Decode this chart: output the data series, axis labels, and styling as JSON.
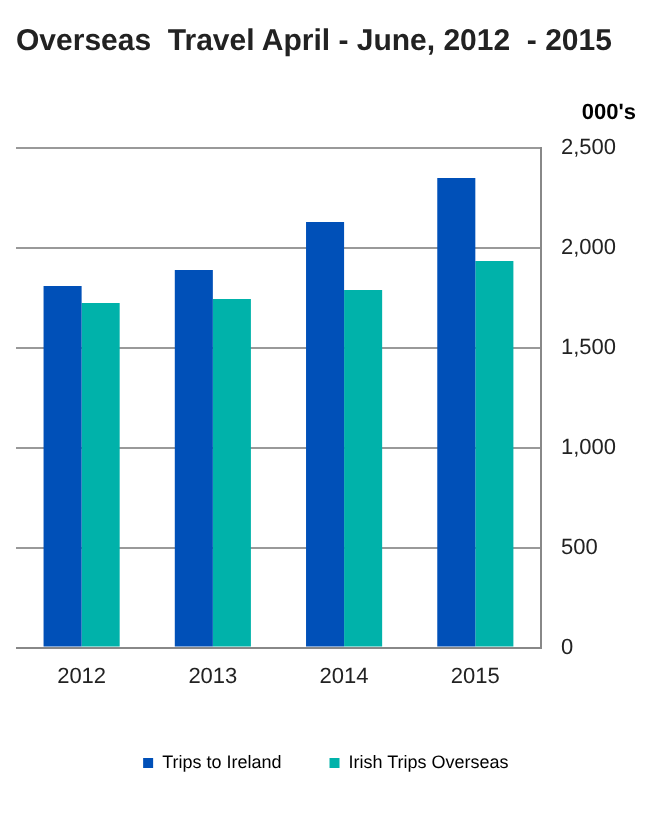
{
  "chart_data": {
    "type": "bar",
    "title": "Overseas  Travel April - June, 2012  - 2015",
    "ylabel": "000's",
    "categories": [
      "2012",
      "2013",
      "2014",
      "2015"
    ],
    "series": [
      {
        "name": "Trips to Ireland",
        "color": "#0050b8",
        "values": [
          1810,
          1890,
          2130,
          2350
        ]
      },
      {
        "name": "Irish Trips Overseas",
        "color": "#00b2aa",
        "values": [
          1725,
          1745,
          1790,
          1935
        ]
      }
    ],
    "ylim": [
      0,
      2500
    ],
    "yticks": [
      {
        "value": 0,
        "label": "0"
      },
      {
        "value": 500,
        "label": "500"
      },
      {
        "value": 1000,
        "label": "1,000"
      },
      {
        "value": 1500,
        "label": "1,500"
      },
      {
        "value": 2000,
        "label": "2,000"
      },
      {
        "value": 2500,
        "label": "2,500"
      }
    ],
    "grid": "y",
    "legend": "bottom"
  }
}
